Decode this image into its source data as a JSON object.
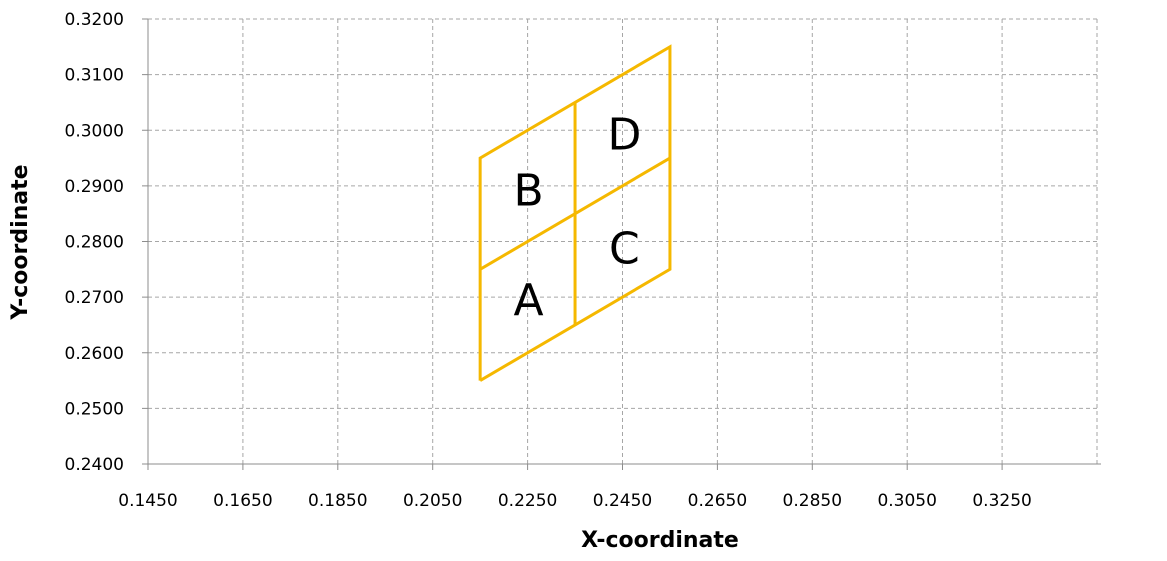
{
  "chart_data": {
    "type": "line",
    "title": "",
    "xlabel": "X-coordinate",
    "ylabel": "Y-coordinate",
    "xlim": [
      0.145,
      0.345
    ],
    "ylim": [
      0.24,
      0.32
    ],
    "x_ticks": [
      "0.1450",
      "0.1650",
      "0.1850",
      "0.2050",
      "0.2250",
      "0.2450",
      "0.2650",
      "0.2850",
      "0.3050",
      "0.3250"
    ],
    "y_ticks": [
      "0.2400",
      "0.2500",
      "0.2600",
      "0.2700",
      "0.2800",
      "0.2900",
      "0.3000",
      "0.3100",
      "0.3200"
    ],
    "grid": true,
    "series_color": "#F5B800",
    "series": [
      {
        "x": [
          0.215,
          0.255,
          0.255,
          0.215,
          0.215
        ],
        "y": [
          0.255,
          0.275,
          0.315,
          0.295,
          0.255
        ]
      },
      {
        "x": [
          0.215,
          0.255
        ],
        "y": [
          0.275,
          0.295
        ]
      },
      {
        "x": [
          0.235,
          0.235
        ],
        "y": [
          0.265,
          0.305
        ]
      }
    ],
    "annotations": [
      {
        "text": "A",
        "x": 0.2252,
        "y": 0.2695
      },
      {
        "text": "B",
        "x": 0.2252,
        "y": 0.2892
      },
      {
        "text": "C",
        "x": 0.2454,
        "y": 0.2787
      },
      {
        "text": "D",
        "x": 0.2454,
        "y": 0.2992
      }
    ]
  }
}
